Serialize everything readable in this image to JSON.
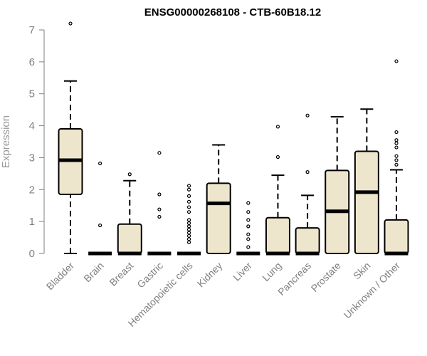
{
  "chart_data": {
    "type": "box",
    "title": "ENSG00000268108 - CTB-60B18.12",
    "xlabel": "",
    "ylabel": "Expression",
    "ylim": [
      0,
      7.3
    ],
    "yticks": [
      0,
      1,
      2,
      3,
      4,
      5,
      6,
      7
    ],
    "grid": false,
    "colors": {
      "box_fill": "#ede6cd",
      "stroke": "#000000",
      "axis": "#7f7f7f",
      "tick_text": "#808080"
    },
    "categories": [
      "Bladder",
      "Brain",
      "Breast",
      "Gastric",
      "Hematopoietic cells",
      "Kidney",
      "Liver",
      "Lung",
      "Pancreas",
      "Prostate",
      "Skin",
      "Unknown / Other"
    ],
    "boxes": [
      {
        "q1": 1.85,
        "median": 2.92,
        "q3": 3.9,
        "whisker_low": 0,
        "whisker_high": 5.4,
        "outliers": [
          7.2
        ]
      },
      {
        "q1": 0,
        "median": 0,
        "q3": 0,
        "whisker_low": 0,
        "whisker_high": 0,
        "outliers": [
          0.88,
          2.82
        ]
      },
      {
        "q1": 0,
        "median": 0,
        "q3": 0.92,
        "whisker_low": 0,
        "whisker_high": 2.28,
        "outliers": [
          2.48
        ]
      },
      {
        "q1": 0,
        "median": 0,
        "q3": 0,
        "whisker_low": 0,
        "whisker_high": 0,
        "outliers": [
          1.15,
          1.38,
          1.85,
          3.15
        ]
      },
      {
        "q1": 0,
        "median": 0,
        "q3": 0,
        "whisker_low": 0,
        "whisker_high": 0,
        "outliers": [
          0.35,
          0.45,
          0.55,
          0.65,
          0.75,
          0.85,
          0.95,
          1.05,
          1.3,
          1.45,
          1.62,
          1.8,
          2.0,
          2.12
        ]
      },
      {
        "q1": 0,
        "median": 1.57,
        "q3": 2.2,
        "whisker_low": 0,
        "whisker_high": 3.4,
        "outliers": []
      },
      {
        "q1": 0,
        "median": 0,
        "q3": 0,
        "whisker_low": 0,
        "whisker_high": 0,
        "outliers": [
          0.2,
          0.45,
          0.6,
          0.85,
          1.05,
          1.3,
          1.58
        ]
      },
      {
        "q1": 0,
        "median": 0,
        "q3": 1.12,
        "whisker_low": 0,
        "whisker_high": 2.45,
        "outliers": [
          3.02,
          3.97
        ]
      },
      {
        "q1": 0,
        "median": 0,
        "q3": 0.8,
        "whisker_low": 0,
        "whisker_high": 1.82,
        "outliers": [
          2.55,
          4.32
        ]
      },
      {
        "q1": 0,
        "median": 1.32,
        "q3": 2.6,
        "whisker_low": 0,
        "whisker_high": 4.28,
        "outliers": []
      },
      {
        "q1": 0,
        "median": 1.92,
        "q3": 3.2,
        "whisker_low": 0,
        "whisker_high": 4.52,
        "outliers": []
      },
      {
        "q1": 0,
        "median": 0,
        "q3": 1.05,
        "whisker_low": 0,
        "whisker_high": 2.62,
        "outliers": [
          2.78,
          2.92,
          3.05,
          3.32,
          3.45,
          3.55,
          3.8,
          6.02
        ]
      }
    ]
  }
}
